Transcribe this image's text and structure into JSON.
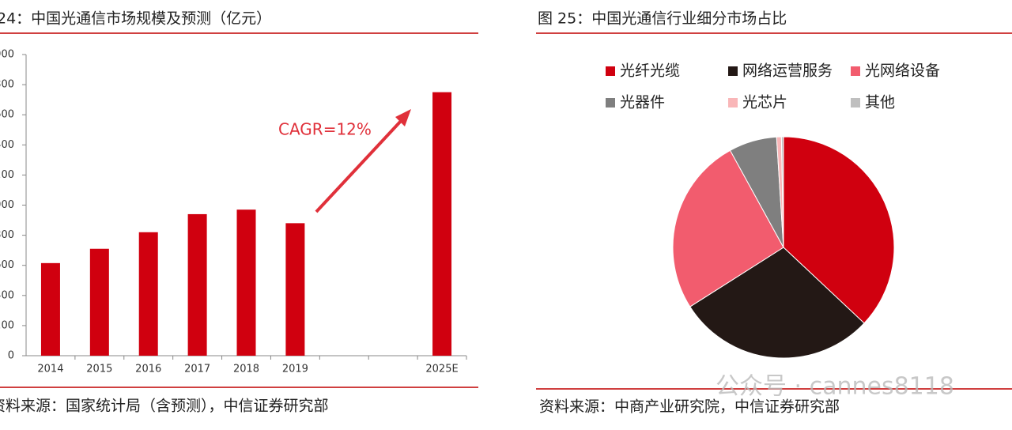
{
  "chart_data": [
    {
      "type": "bar",
      "title": "24：中国光通信市场规模及预测（亿元）",
      "categories": [
        "2014",
        "2015",
        "2016",
        "2017",
        "2018",
        "2019",
        null,
        null,
        "2025E"
      ],
      "values": [
        615,
        710,
        820,
        940,
        970,
        880,
        null,
        null,
        1750
      ],
      "color": "#d0000f",
      "ylim": [
        0,
        2000
      ],
      "yticks": [
        0,
        {
          "value": 200,
          "label": "200"
        },
        {
          "value": 400,
          "label": "400"
        },
        {
          "value": 600,
          "label": "600"
        },
        {
          "value": 800,
          "label": "800"
        },
        {
          "value": 1000,
          "label": "000"
        },
        {
          "value": 1200,
          "label": "200"
        },
        {
          "value": 1400,
          "label": "400"
        },
        {
          "value": 1600,
          "label": "600"
        },
        {
          "value": 1800,
          "label": "800"
        },
        {
          "value": 2000,
          "label": "000"
        }
      ],
      "annotation": "CAGR=12%",
      "source": "资料来源：国家统计局（含预测），中信证券研究部"
    },
    {
      "type": "pie",
      "title": "图 25：中国光通信行业细分市场占比",
      "categories": [
        "光纤光缆",
        "网络运营服务",
        "光网络设备",
        "光器件",
        "光芯片",
        "其他"
      ],
      "values": [
        37,
        29,
        26,
        7,
        0.7,
        0.3
      ],
      "colors": [
        "#d0000f",
        "#231815",
        "#f25c6e",
        "#7f7f7f",
        "#f9b6b8",
        "#bfbfbf"
      ],
      "source": "资料来源：中商产业研究院，中信证券研究部",
      "watermark": "公众号 · cannes8118"
    }
  ]
}
